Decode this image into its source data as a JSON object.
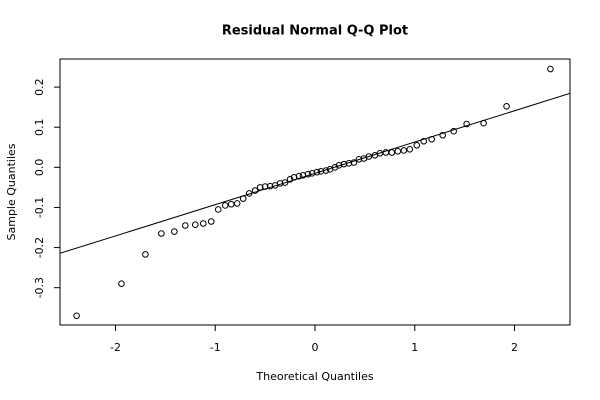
{
  "chart_data": {
    "type": "scatter",
    "title": "Residual Normal Q-Q Plot",
    "x_label": "Theoretical Quantiles",
    "y_label": "Sample Quantiles",
    "x": [
      -2.39,
      -1.94,
      -1.7,
      -1.54,
      -1.41,
      -1.3,
      -1.2,
      -1.12,
      -1.04,
      -0.97,
      -0.9,
      -0.84,
      -0.78,
      -0.72,
      -0.66,
      -0.6,
      -0.55,
      -0.5,
      -0.45,
      -0.4,
      -0.35,
      -0.3,
      -0.25,
      -0.21,
      -0.16,
      -0.12,
      -0.07,
      -0.03,
      0.02,
      0.06,
      0.11,
      0.15,
      0.2,
      0.24,
      0.29,
      0.34,
      0.39,
      0.44,
      0.49,
      0.54,
      0.6,
      0.65,
      0.71,
      0.77,
      0.83,
      0.89,
      0.95,
      1.02,
      1.09,
      1.17,
      1.28,
      1.39,
      1.52,
      1.69,
      1.92,
      2.36
    ],
    "values": [
      -0.37,
      -0.29,
      -0.217,
      -0.165,
      -0.16,
      -0.145,
      -0.143,
      -0.14,
      -0.135,
      -0.105,
      -0.095,
      -0.092,
      -0.09,
      -0.078,
      -0.065,
      -0.058,
      -0.05,
      -0.048,
      -0.047,
      -0.045,
      -0.04,
      -0.038,
      -0.03,
      -0.025,
      -0.022,
      -0.02,
      -0.017,
      -0.015,
      -0.012,
      -0.01,
      -0.008,
      -0.005,
      0,
      0.005,
      0.008,
      0.01,
      0.012,
      0.02,
      0.022,
      0.027,
      0.03,
      0.035,
      0.037,
      0.037,
      0.04,
      0.042,
      0.045,
      0.055,
      0.065,
      0.07,
      0.08,
      0.09,
      0.108,
      0.11,
      0.152,
      0.245
    ],
    "reference_line": {
      "intercept": -0.015,
      "slope": 0.078
    },
    "xlim": [
      -2.556,
      2.556
    ],
    "ylim": [
      -0.393,
      0.27
    ],
    "xticks": [
      -2,
      -1,
      0,
      1,
      2
    ],
    "yticks": [
      -0.3,
      -0.2,
      -0.1,
      {
        "value": 0,
        "label": "0.0"
      },
      0.1,
      0.2
    ],
    "color": "#000000"
  }
}
